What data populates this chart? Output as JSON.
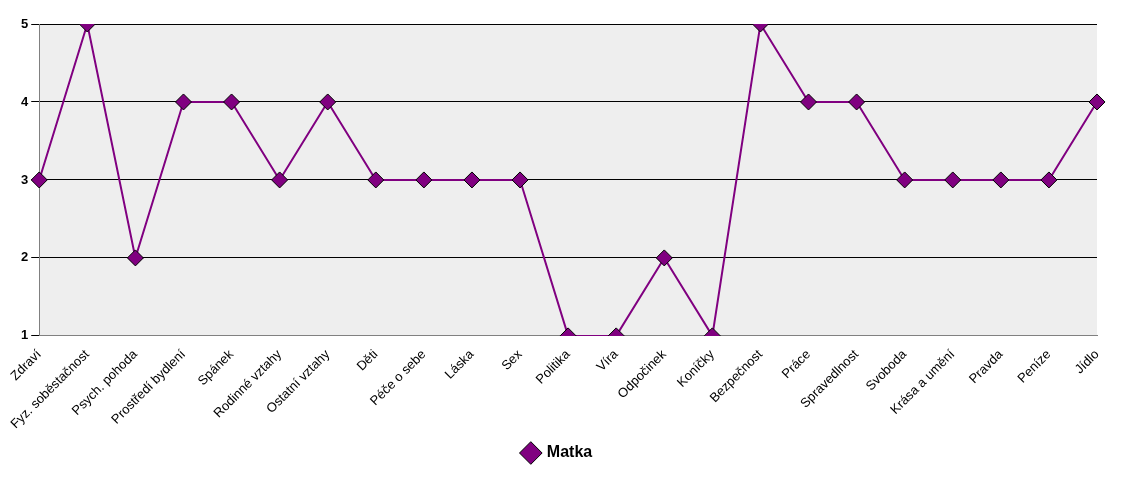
{
  "chart_data": {
    "type": "line",
    "categories": [
      "Zdraví",
      "Fyz. soběstačnost",
      "Psych. pohoda",
      "Prostředí bydlení",
      "Spánek",
      "Rodinné vztahy",
      "Ostatní vztahy",
      "Děti",
      "Péče o sebe",
      "Láska",
      "Sex",
      "Politika",
      "Víra",
      "Odpočinek",
      "Koníčky",
      "Bezpečnost",
      "Práce",
      "Spravedlnost",
      "Svoboda",
      "Krása a umění",
      "Pravda",
      "Peníze",
      "Jídlo"
    ],
    "series": [
      {
        "name": "Matka",
        "color": "#800080",
        "values": [
          3,
          5,
          2,
          4,
          4,
          3,
          4,
          3,
          3,
          3,
          3,
          1,
          1,
          2,
          1,
          5,
          4,
          4,
          3,
          3,
          3,
          3,
          4
        ]
      }
    ],
    "ylim": [
      1,
      5
    ],
    "yticks": [
      1,
      2,
      3,
      4,
      5
    ],
    "grid": "y",
    "legend": "bottom",
    "marker": "diamond",
    "line_style": "solid"
  }
}
